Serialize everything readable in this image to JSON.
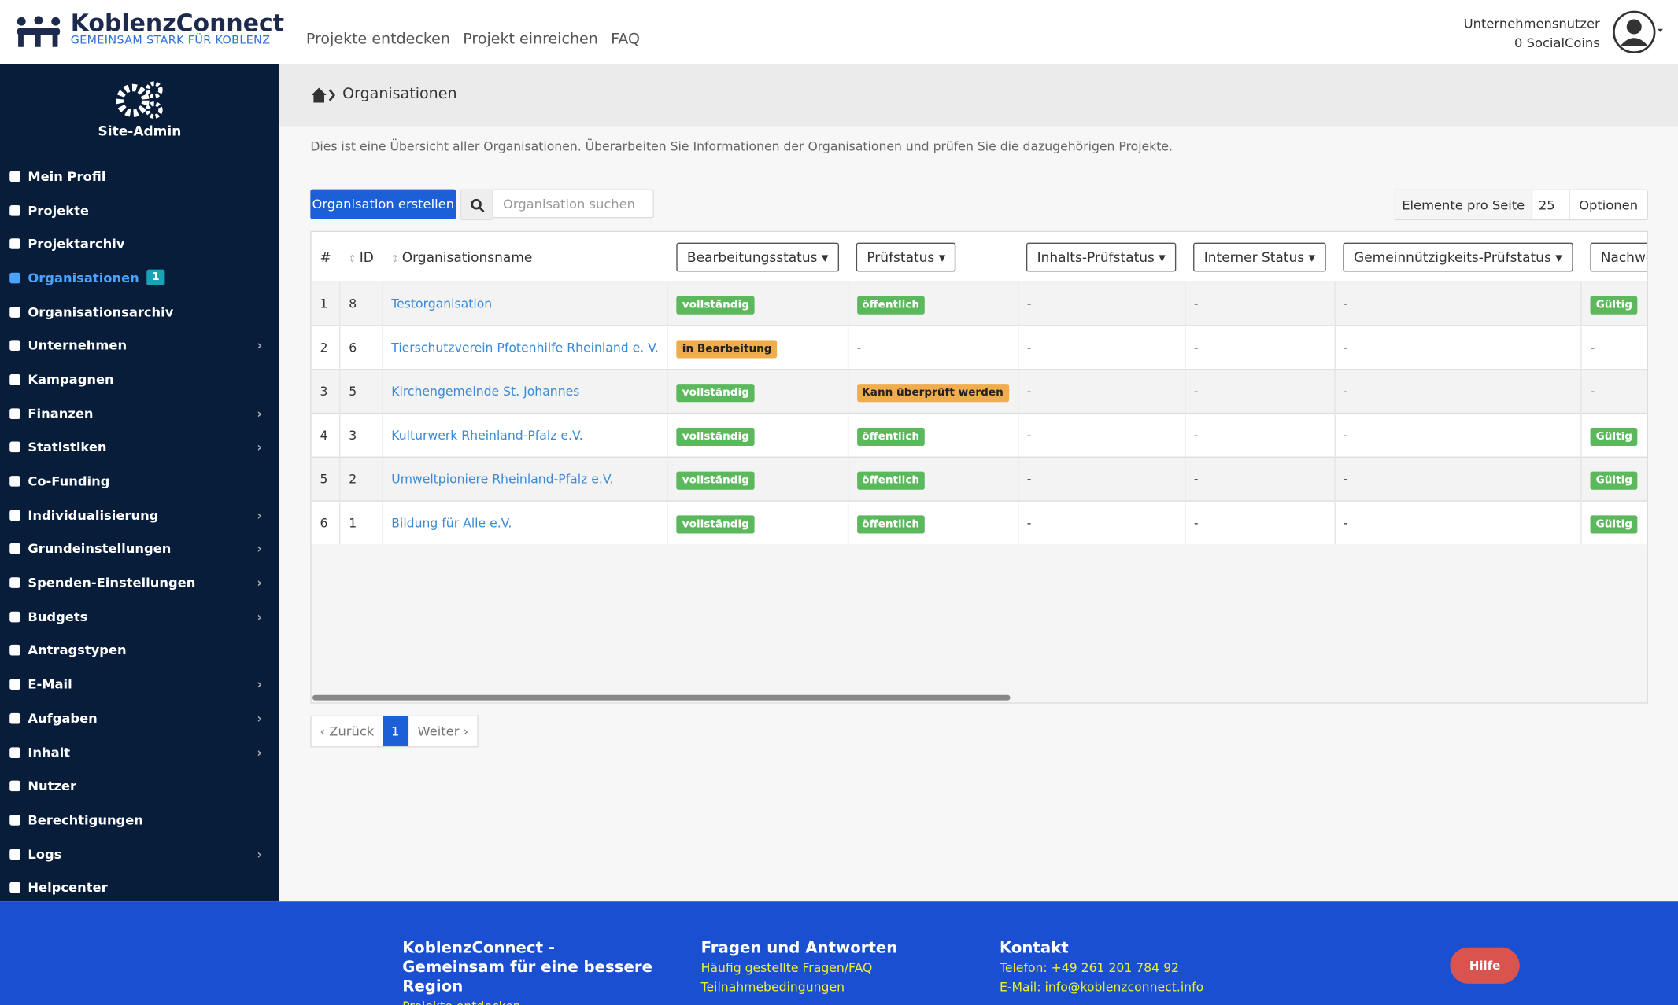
{
  "header": {
    "brand": "KoblenzConnect",
    "tagline": "GEMEINSAM STARK FÜR KOBLENZ",
    "nav": [
      "Projekte entdecken",
      "Projekt einreichen",
      "FAQ"
    ],
    "user": "Unternehmensnutzer",
    "coins": "0 SocialCoins"
  },
  "sidebar": {
    "title": "Site-Admin",
    "items": [
      {
        "label": "Mein Profil",
        "arrow": false
      },
      {
        "label": "Projekte",
        "arrow": false
      },
      {
        "label": "Projektarchiv",
        "arrow": false
      },
      {
        "label": "Organisationen",
        "arrow": false,
        "active": true,
        "badge": "1"
      },
      {
        "label": "Organisationsarchiv",
        "arrow": false
      },
      {
        "label": "Unternehmen",
        "arrow": true
      },
      {
        "label": "Kampagnen",
        "arrow": false
      },
      {
        "label": "Finanzen",
        "arrow": true
      },
      {
        "label": "Statistiken",
        "arrow": true
      },
      {
        "label": "Co-Funding",
        "arrow": false
      },
      {
        "label": "Individualisierung",
        "arrow": true
      },
      {
        "label": "Grundeinstellungen",
        "arrow": true
      },
      {
        "label": "Spenden-Einstellungen",
        "arrow": true
      },
      {
        "label": "Budgets",
        "arrow": true
      },
      {
        "label": "Antragstypen",
        "arrow": false
      },
      {
        "label": "E-Mail",
        "arrow": true
      },
      {
        "label": "Aufgaben",
        "arrow": true
      },
      {
        "label": "Inhalt",
        "arrow": true
      },
      {
        "label": "Nutzer",
        "arrow": false
      },
      {
        "label": "Berechtigungen",
        "arrow": false
      },
      {
        "label": "Logs",
        "arrow": true
      },
      {
        "label": "Helpcenter",
        "arrow": false
      }
    ]
  },
  "breadcrumb": "Organisationen",
  "description": "Dies ist eine Übersicht aller Organisationen. Überarbeiten Sie Informationen der Organisationen und prüfen Sie die dazugehörigen Projekte.",
  "toolbar": {
    "create": "Organisation erstellen",
    "search_placeholder": "Organisation suchen",
    "per_page_label": "Elemente pro Seite",
    "per_page": "25",
    "options": "Optionen"
  },
  "table": {
    "headers": [
      "#",
      "ID",
      "Organisationsname",
      "Bearbeitungsstatus",
      "Prüfstatus",
      "Inhalts-Prüfstatus",
      "Interner Status",
      "Gemeinnützigkeits-Prüfstatus",
      "Nachweis"
    ],
    "rows": [
      [
        "1",
        "8",
        "Testorganisation",
        {
          "text": "vollständig",
          "color": "#5cb85c"
        },
        {
          "text": "öffentlich",
          "color": "#5cb85c"
        },
        "-",
        "-",
        "-",
        {
          "text": "Gültig",
          "color": "#5cb85c"
        }
      ],
      [
        "2",
        "6",
        "Tierschutzverein Pfotenhilfe Rheinland e. V.",
        {
          "text": "in Bearbeitung",
          "color": "#f0ad4e"
        },
        "-",
        "-",
        "-",
        "-",
        "-"
      ],
      [
        "3",
        "5",
        "Kirchengemeinde St. Johannes",
        {
          "text": "vollständig",
          "color": "#5cb85c"
        },
        {
          "text": "Kann überprüft werden",
          "color": "#f0ad4e"
        },
        "-",
        "-",
        "-",
        "-"
      ],
      [
        "4",
        "3",
        "Kulturwerk Rheinland-Pfalz e.V.",
        {
          "text": "vollständig",
          "color": "#5cb85c"
        },
        {
          "text": "öffentlich",
          "color": "#5cb85c"
        },
        "-",
        "-",
        "-",
        {
          "text": "Gültig",
          "color": "#5cb85c"
        }
      ],
      [
        "5",
        "2",
        "Umweltpioniere Rheinland-Pfalz e.V.",
        {
          "text": "vollständig",
          "color": "#5cb85c"
        },
        {
          "text": "öffentlich",
          "color": "#5cb85c"
        },
        "-",
        "-",
        "-",
        {
          "text": "Gültig",
          "color": "#5cb85c"
        }
      ],
      [
        "6",
        "1",
        "Bildung für Alle e.V.",
        {
          "text": "vollständig",
          "color": "#5cb85c"
        },
        {
          "text": "öffentlich",
          "color": "#5cb85c"
        },
        "-",
        "-",
        "-",
        {
          "text": "Gültig",
          "color": "#5cb85c"
        }
      ]
    ]
  },
  "pagination": {
    "prev": "‹ Zurück",
    "current": "1",
    "next": "Weiter ›"
  },
  "footer": {
    "columns": [
      {
        "title": "KoblenzConnect - Gemeinsam für eine bessere Region",
        "links": [
          "Projekte entdecken"
        ]
      },
      {
        "title": "Fragen und Antworten",
        "links": [
          "Häufig gestellte Fragen/FAQ",
          "Teilnahmebedingungen"
        ]
      },
      {
        "title": "Kontakt",
        "links": [
          "Telefon: +49 261 201 784 92",
          "E-Mail: info@koblenzconnect.info"
        ]
      }
    ],
    "help": "Hilfe"
  }
}
